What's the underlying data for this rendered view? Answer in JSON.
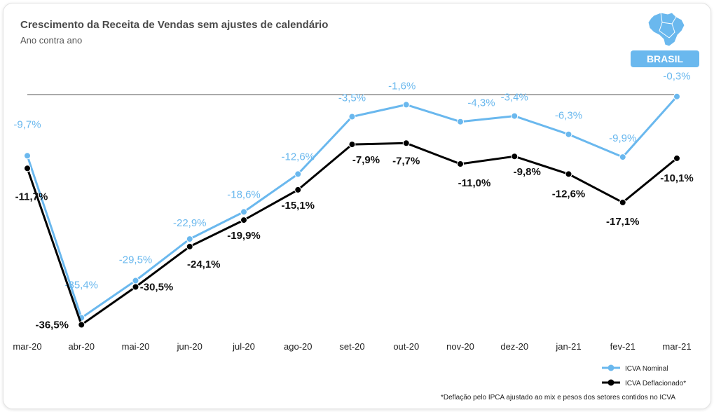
{
  "header": {
    "title": "Crescimento da Receita de Vendas sem ajustes de calendário",
    "subtitle": "Ano contra ano"
  },
  "region": {
    "label": "BRASIL",
    "icon": "brazil-map-icon",
    "color": "#6ab8ee"
  },
  "footnote": "*Deflação pelo IPCA ajustado ao mix e pesos dos setores contidos no ICVA",
  "chart_data": {
    "type": "line",
    "categories": [
      "mar-20",
      "abr-20",
      "mai-20",
      "jun-20",
      "jul-20",
      "ago-20",
      "set-20",
      "out-20",
      "nov-20",
      "dez-20",
      "jan-21",
      "fev-21",
      "mar-21"
    ],
    "series": [
      {
        "name": "ICVA Nominal",
        "color": "#6ab8ee",
        "values": [
          -9.7,
          -35.4,
          -29.5,
          -22.9,
          -18.6,
          -12.6,
          -3.5,
          -1.6,
          -4.3,
          -3.4,
          -6.3,
          -9.9,
          -0.3
        ],
        "labels": [
          "-9,7%",
          "-35,4%",
          "-29,5%",
          "-22,9%",
          "-18,6%",
          "-12,6%",
          "-3,5%",
          "-1,6%",
          "-4,3%",
          "-3,4%",
          "-6,3%",
          "-9,9%",
          "-0,3%"
        ]
      },
      {
        "name": "ICVA Deflacionado*",
        "color": "#000000",
        "values": [
          -11.7,
          -36.5,
          -30.5,
          -24.1,
          -19.9,
          -15.1,
          -7.9,
          -7.7,
          -11.0,
          -9.8,
          -12.6,
          -17.1,
          -10.1
        ],
        "labels": [
          "-11,7%",
          "-36,5%",
          "-30,5%",
          "-24,1%",
          "-19,9%",
          "-15,1%",
          "-7,9%",
          "-7,7%",
          "-11,0%",
          "-9,8%",
          "-12,6%",
          "-17,1%",
          "-10,1%"
        ]
      }
    ],
    "zero_line": true,
    "grid": false,
    "legend_position": "bottom-right"
  }
}
